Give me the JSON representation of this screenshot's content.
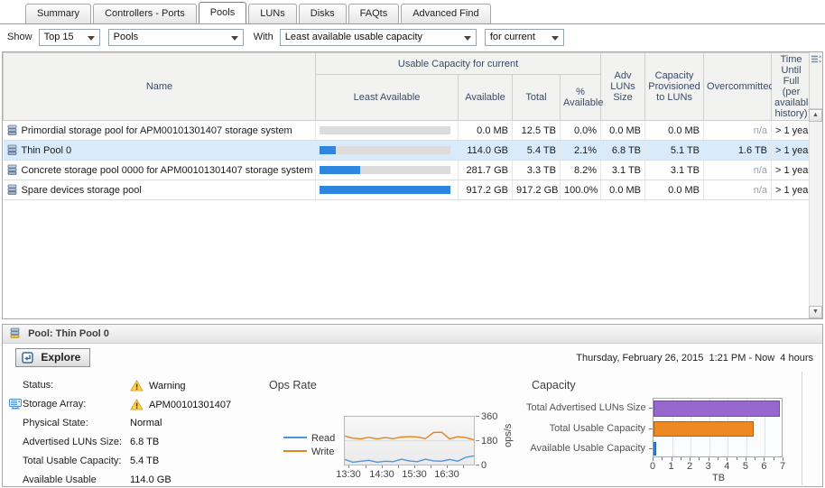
{
  "tabs": {
    "items": [
      {
        "label": "Summary",
        "active": false
      },
      {
        "label": "Controllers - Ports",
        "active": false
      },
      {
        "label": "Pools",
        "active": true
      },
      {
        "label": "LUNs",
        "active": false
      },
      {
        "label": "Disks",
        "active": false
      },
      {
        "label": "FAQts",
        "active": false
      },
      {
        "label": "Advanced Find",
        "active": false
      }
    ]
  },
  "filters": {
    "show_label": "Show",
    "top_value": "Top 15",
    "type_value": "Pools",
    "with_label": "With",
    "metric_value": "Least available usable capacity",
    "period_value": "for current"
  },
  "table": {
    "headers": {
      "name": "Name",
      "group": "Usable Capacity for current",
      "least": "Least Available",
      "available": "Available",
      "total": "Total",
      "pct": "% Available",
      "adv": "Adv LUNs Size",
      "prov": "Capacity Provisioned to LUNs",
      "over": "Overcommitted",
      "ttf": "Time Until Full (per available history)"
    },
    "rows": [
      {
        "name": "Primordial storage pool for APM00101301407 storage system",
        "bar_pct": 0,
        "available": "0.0 MB",
        "total": "12.5 TB",
        "pct": "0.0%",
        "adv": "0.0 MB",
        "prov": "0.0 MB",
        "over": "n/a",
        "over_na": true,
        "ttf": "> 1 year",
        "selected": false
      },
      {
        "name": "Thin Pool 0",
        "bar_pct": 12.4,
        "available": "114.0 GB",
        "total": "5.4 TB",
        "pct": "2.1%",
        "adv": "6.8 TB",
        "prov": "5.1 TB",
        "over": "1.6 TB",
        "over_na": false,
        "ttf": "> 1 year",
        "selected": true
      },
      {
        "name": "Concrete storage pool 0000 for APM00101301407 storage system",
        "bar_pct": 30.7,
        "available": "281.7 GB",
        "total": "3.3 TB",
        "pct": "8.2%",
        "adv": "3.1 TB",
        "prov": "3.1 TB",
        "over": "n/a",
        "over_na": true,
        "ttf": "> 1 year",
        "selected": false
      },
      {
        "name": "Spare devices storage pool",
        "bar_pct": 100,
        "available": "917.2 GB",
        "total": "917.2 GB",
        "pct": "100.0%",
        "adv": "0.0 MB",
        "prov": "0.0 MB",
        "over": "n/a",
        "over_na": true,
        "ttf": "> 1 year",
        "selected": false
      }
    ]
  },
  "detail": {
    "title": "Pool: Thin Pool 0",
    "explore_label": "Explore",
    "timestamp": "Thursday, February 26, 2015  1:21 PM - Now  4 hours",
    "fields": [
      {
        "label": "Status:",
        "value": "Warning",
        "warning": true,
        "array_icon": false
      },
      {
        "label": "Storage Array:",
        "value": "APM00101301407",
        "warning": true,
        "array_icon": true
      },
      {
        "label": "Physical State:",
        "value": "Normal",
        "warning": false,
        "array_icon": false
      },
      {
        "label": "Advertised LUNs Size:",
        "value": "6.8 TB",
        "warning": false,
        "array_icon": false
      },
      {
        "label": "Total Usable Capacity:",
        "value": "5.4 TB",
        "warning": false,
        "array_icon": false
      },
      {
        "label": "Available Usable",
        "value": "114.0 GB",
        "warning": false,
        "array_icon": false
      }
    ]
  },
  "chart_data": [
    {
      "type": "line",
      "title": "Ops Rate",
      "ylabel": "ops/s",
      "ylim": [
        0,
        360
      ],
      "yticks": [
        360,
        180,
        0
      ],
      "xticks": [
        "13:30",
        "14:30",
        "15:30",
        "16:30"
      ],
      "legend_position": "left",
      "series": [
        {
          "name": "Read",
          "color": "#4d96d9",
          "values": [
            38,
            18,
            25,
            32,
            18,
            25,
            22,
            40,
            28,
            22,
            40,
            28,
            25,
            38,
            25,
            55,
            65
          ]
        },
        {
          "name": "Write",
          "color": "#e8821e",
          "values": [
            215,
            198,
            193,
            205,
            193,
            203,
            195,
            207,
            210,
            208,
            195,
            242,
            243,
            193,
            210,
            203,
            186
          ]
        }
      ]
    },
    {
      "type": "bar",
      "title": "Capacity",
      "xlabel": "TB",
      "xlim": [
        0,
        7
      ],
      "xticks": [
        0,
        1,
        2,
        3,
        4,
        5,
        6,
        7
      ],
      "categories": [
        "Total Advertised LUNs Size",
        "Total Usable Capacity",
        "Available Usable Capacity"
      ],
      "values": [
        6.8,
        5.4,
        0.11
      ],
      "colors": [
        "#9668ce",
        "#ee8822",
        "#3d8ee0"
      ],
      "border_colors": [
        "#6c4a9e",
        "#b05f0e",
        "#1f64a8"
      ]
    }
  ],
  "colors": {
    "selected_row": "#d9eafb",
    "least_available_bar": "#2e86e0",
    "bar_track": "#dcdcdc",
    "warning_yellow": "#ffd24a"
  },
  "icons": {
    "pool": "pool-icon",
    "warning": "warning-icon",
    "storage_array": "storage-array-icon",
    "explore": "explore-icon",
    "grid_options": "grid-options-icon"
  }
}
